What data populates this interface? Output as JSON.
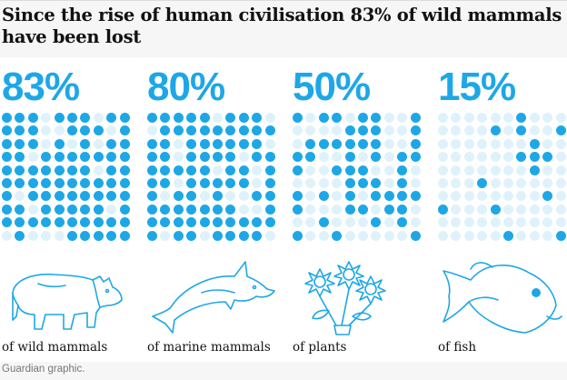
{
  "title": "Since the rise of human civilisation 83% of wild mammals have been lost",
  "source": "Guardian graphic.",
  "colors": {
    "lost": "#1ea7e6",
    "remaining": "#dff2fb",
    "percent_text": "#1ea7e6"
  },
  "chart_data": {
    "type": "waffle",
    "title": "Since the rise of human civilisation 83% of wild mammals have been lost",
    "grid": {
      "rows": 10,
      "cols": 10
    },
    "unit": "percent lost",
    "series": [
      {
        "name": "of wild mammals",
        "percent_label": "83%",
        "value": 83,
        "icon": "rhino-icon"
      },
      {
        "name": "of marine mammals",
        "percent_label": "80%",
        "value": 80,
        "icon": "dolphin-icon"
      },
      {
        "name": "of plants",
        "percent_label": "50%",
        "value": 50,
        "icon": "flowers-icon"
      },
      {
        "name": "of fish",
        "percent_label": "15%",
        "value": 15,
        "icon": "fish-icon"
      }
    ]
  }
}
